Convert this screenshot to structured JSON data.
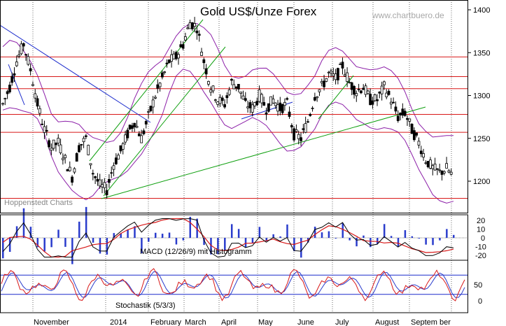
{
  "chart_data": {
    "type": "candlestick",
    "title": "Gold US$/Unze Forex",
    "watermark": "www.chartbuero.de",
    "source_label": "Hoppenstedt Charts",
    "months": [
      "November",
      "2014",
      "February",
      "March",
      "April",
      "May",
      "June",
      "July",
      "August",
      "Septem ber"
    ],
    "price": {
      "y_ticks": [
        1200,
        1250,
        1300,
        1350,
        1400
      ],
      "ylim": [
        1175,
        1410
      ],
      "series_close": [
        1290,
        1310,
        1340,
        1360,
        1330,
        1290,
        1260,
        1240,
        1245,
        1225,
        1205,
        1240,
        1250,
        1210,
        1195,
        1190,
        1220,
        1235,
        1255,
        1270,
        1250,
        1275,
        1300,
        1320,
        1340,
        1345,
        1360,
        1385,
        1380,
        1340,
        1310,
        1295,
        1290,
        1315,
        1310,
        1290,
        1285,
        1300,
        1285,
        1295,
        1285,
        1290,
        1255,
        1250,
        1270,
        1300,
        1310,
        1325,
        1320,
        1335,
        1315,
        1305,
        1310,
        1295,
        1295,
        1310,
        1295,
        1275,
        1280,
        1260,
        1245,
        1225,
        1215,
        1210,
        1215,
        1205
      ],
      "resistance_lines": [
        1345,
        1322,
        1308,
        1278,
        1257,
        1180
      ],
      "line_colors": {
        "support_resistance": "#d81818",
        "trend_up": "#10a010",
        "trend_down": "#1c2ccc",
        "bollinger": "#8c1fa8",
        "candles": "#000000"
      }
    },
    "macd": {
      "label": "MACD (12/26/9) mit Histogramm",
      "y_ticks": [
        20,
        10,
        0,
        -10,
        -20
      ],
      "colors": {
        "macd": "#000000",
        "signal": "#d81818",
        "histogram": "#2a3ccc"
      }
    },
    "stochastic": {
      "label": "Stochastik (5/3/3)",
      "y_ticks": [
        50,
        0
      ],
      "levels": [
        80,
        20
      ],
      "colors": {
        "k": "#d81818",
        "d": "#2a3ccc",
        "levels": "#1c2ccc"
      }
    }
  }
}
